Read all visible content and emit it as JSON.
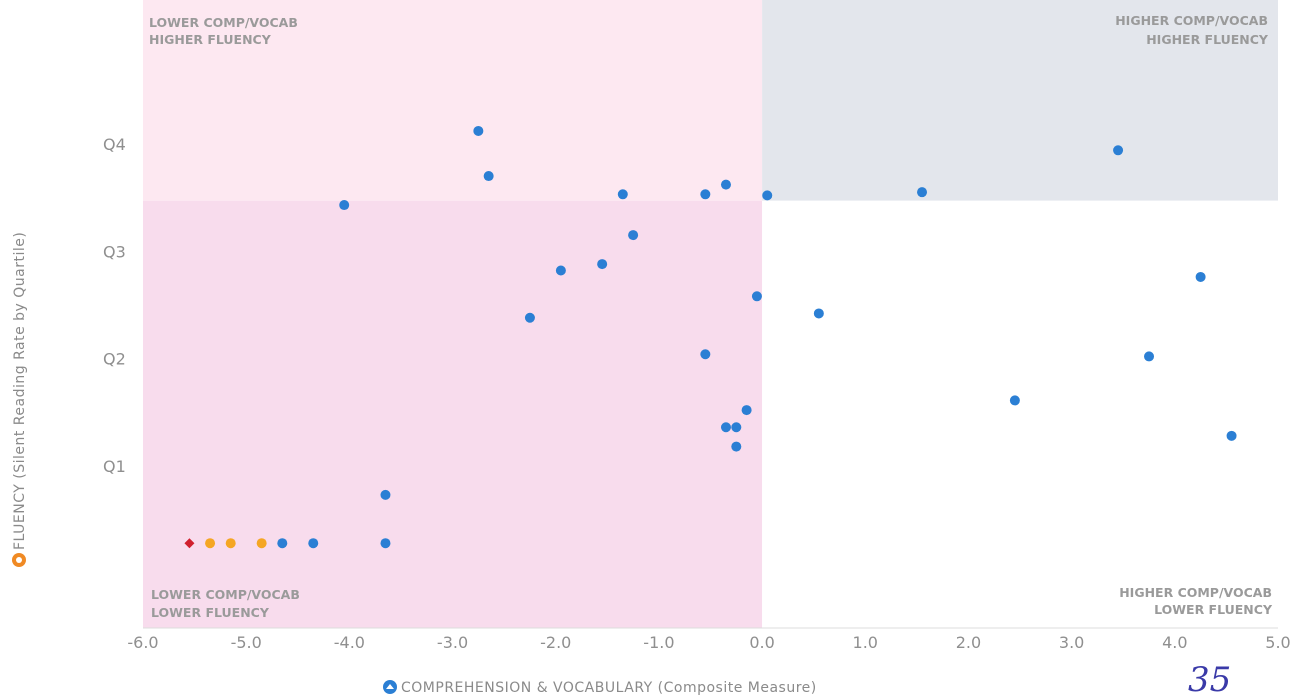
{
  "chart_data": {
    "type": "scatter",
    "xlabel": "COMPREHENSION & VOCABULARY (Composite Measure)",
    "ylabel": "FLUENCY (Silent Reading Rate by Quartile)",
    "xlim": [
      -6.0,
      5.0
    ],
    "ylim": [
      0,
      5.85
    ],
    "x_ticks": [
      "-6.0",
      "-5.0",
      "-4.0",
      "-3.0",
      "-2.0",
      "-1.0",
      "0.0",
      "1.0",
      "2.0",
      "3.0",
      "4.0",
      "5.0"
    ],
    "y_ticks": [
      {
        "label": "Q1",
        "value": 1.5
      },
      {
        "label": "Q2",
        "value": 2.5
      },
      {
        "label": "Q3",
        "value": 3.5
      },
      {
        "label": "Q4",
        "value": 4.5
      }
    ],
    "quadrant_split": {
      "x": 0.0,
      "y": 3.98
    },
    "quadrant_labels": {
      "top_left": [
        "LOWER COMP/VOCAB",
        "HIGHER FLUENCY"
      ],
      "top_right": [
        "HIGHER COMP/VOCAB",
        "HIGHER FLUENCY"
      ],
      "bottom_left": [
        "LOWER COMP/VOCAB",
        "LOWER FLUENCY"
      ],
      "bottom_right": [
        "HIGHER COMP/VOCAB",
        "LOWER FLUENCY"
      ]
    },
    "colors": {
      "top_left_bg": "#fde8f1",
      "top_right_bg": "#e3e6ec",
      "bottom_left_bg": "#f8dced",
      "bottom_right_bg": "#ffffff",
      "point_blue": "#2b7fd4",
      "point_orange": "#f5a623",
      "point_red": "#d0202e"
    },
    "grid": false,
    "points": [
      {
        "x": -2.75,
        "y": 4.63,
        "color": "blue",
        "shape": "circle"
      },
      {
        "x": -2.65,
        "y": 4.21,
        "color": "blue",
        "shape": "circle"
      },
      {
        "x": -4.05,
        "y": 3.94,
        "color": "blue",
        "shape": "circle"
      },
      {
        "x": -1.35,
        "y": 4.04,
        "color": "blue",
        "shape": "circle"
      },
      {
        "x": -0.55,
        "y": 4.04,
        "color": "blue",
        "shape": "circle"
      },
      {
        "x": -0.35,
        "y": 4.13,
        "color": "blue",
        "shape": "circle"
      },
      {
        "x": 0.05,
        "y": 4.03,
        "color": "blue",
        "shape": "circle"
      },
      {
        "x": 1.55,
        "y": 4.06,
        "color": "blue",
        "shape": "circle"
      },
      {
        "x": 3.45,
        "y": 4.45,
        "color": "blue",
        "shape": "circle"
      },
      {
        "x": -1.25,
        "y": 3.66,
        "color": "blue",
        "shape": "circle"
      },
      {
        "x": -1.55,
        "y": 3.39,
        "color": "blue",
        "shape": "circle"
      },
      {
        "x": -1.95,
        "y": 3.33,
        "color": "blue",
        "shape": "circle"
      },
      {
        "x": -2.25,
        "y": 2.89,
        "color": "blue",
        "shape": "circle"
      },
      {
        "x": -0.05,
        "y": 3.09,
        "color": "blue",
        "shape": "circle"
      },
      {
        "x": 0.55,
        "y": 2.93,
        "color": "blue",
        "shape": "circle"
      },
      {
        "x": 4.25,
        "y": 3.27,
        "color": "blue",
        "shape": "circle"
      },
      {
        "x": 3.75,
        "y": 2.53,
        "color": "blue",
        "shape": "circle"
      },
      {
        "x": -0.55,
        "y": 2.55,
        "color": "blue",
        "shape": "circle"
      },
      {
        "x": 2.45,
        "y": 2.12,
        "color": "blue",
        "shape": "circle"
      },
      {
        "x": -0.15,
        "y": 2.03,
        "color": "blue",
        "shape": "circle"
      },
      {
        "x": -0.35,
        "y": 1.87,
        "color": "blue",
        "shape": "circle"
      },
      {
        "x": -0.25,
        "y": 1.87,
        "color": "blue",
        "shape": "circle"
      },
      {
        "x": -0.25,
        "y": 1.69,
        "color": "blue",
        "shape": "circle"
      },
      {
        "x": 4.55,
        "y": 1.79,
        "color": "blue",
        "shape": "circle"
      },
      {
        "x": -3.65,
        "y": 1.24,
        "color": "blue",
        "shape": "circle"
      },
      {
        "x": -3.65,
        "y": 0.79,
        "color": "blue",
        "shape": "circle"
      },
      {
        "x": -4.35,
        "y": 0.79,
        "color": "blue",
        "shape": "circle"
      },
      {
        "x": -4.65,
        "y": 0.79,
        "color": "blue",
        "shape": "circle"
      },
      {
        "x": -4.85,
        "y": 0.79,
        "color": "orange",
        "shape": "circle"
      },
      {
        "x": -5.15,
        "y": 0.79,
        "color": "orange",
        "shape": "circle"
      },
      {
        "x": -5.35,
        "y": 0.79,
        "color": "orange",
        "shape": "circle"
      },
      {
        "x": -5.55,
        "y": 0.79,
        "color": "red",
        "shape": "diamond"
      }
    ]
  },
  "annotation": "35"
}
